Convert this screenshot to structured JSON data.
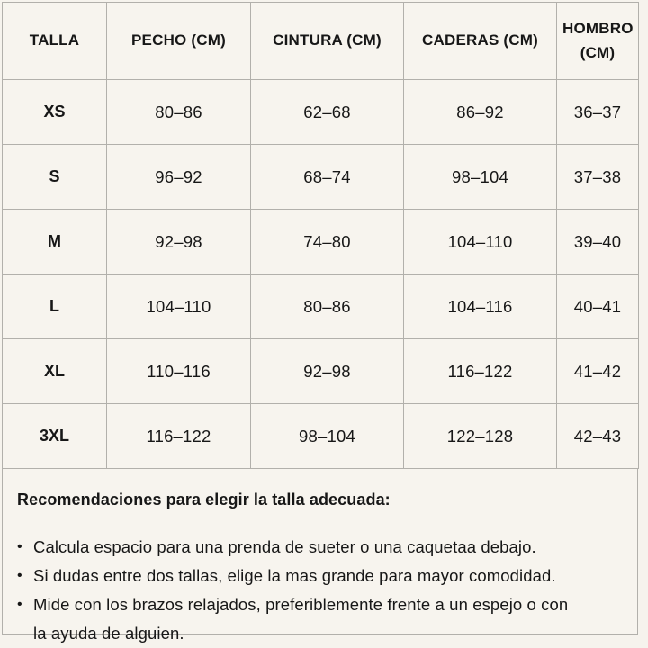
{
  "table": {
    "columns": [
      {
        "label": "TALLA"
      },
      {
        "label": "PECHO (CM)"
      },
      {
        "label": "CINTURA (CM)"
      },
      {
        "label": "CADERAS (CM)"
      },
      {
        "label": "HOMBRO (CM)"
      }
    ],
    "rows": [
      {
        "talla": "XS",
        "pecho": "80–86",
        "cintura": "62–68",
        "caderas": "86–92",
        "hombro": "36–37"
      },
      {
        "talla": "S",
        "pecho": "96–92",
        "cintura": "68–74",
        "caderas": "98–104",
        "hombro": "37–38"
      },
      {
        "talla": "M",
        "pecho": "92–98",
        "cintura": "74–80",
        "caderas": "104–110",
        "hombro": "39–40"
      },
      {
        "talla": "L",
        "pecho": "104–110",
        "cintura": "80–86",
        "caderas": "104–116",
        "hombro": "40–41"
      },
      {
        "talla": "XL",
        "pecho": "110–116",
        "cintura": "92–98",
        "caderas": "116–122",
        "hombro": "41–42"
      },
      {
        "talla": "3XL",
        "pecho": "116–122",
        "cintura": "98–104",
        "caderas": "122–128",
        "hombro": "42–43"
      }
    ]
  },
  "recommendations": {
    "heading": "Recomendaciones para elegir la talla adecuada:",
    "bullet_glyph": "•",
    "items": [
      "Calcula espacio para una prenda de sueter o una caquetaa debajo.",
      "Si dudas entre dos tallas, elige la mas grande para mayor comodidad.",
      "Mide con los brazos relajados, preferiblemente frente a un espejo o con la ayuda de alguien."
    ]
  },
  "colors": {
    "background": "#f6f3ed",
    "cell_background": "#f7f4ee",
    "border": "#b2b0ab",
    "text": "#171717"
  }
}
